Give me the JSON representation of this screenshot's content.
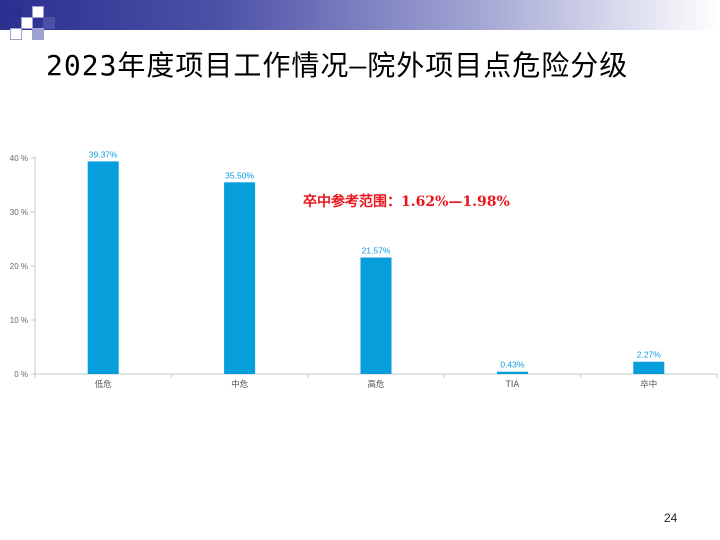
{
  "slide": {
    "title": "2023年度项目工作情况—院外项目点危险分级",
    "annotation": "卒中参考范围：1.62%—1.98%",
    "page_number": "24",
    "colors": {
      "bar": "#069fdc",
      "annotation": "#e8161c",
      "band_start": "#2b2f8f",
      "axis": "#c8c8c8"
    }
  },
  "chart_data": {
    "type": "bar",
    "categories": [
      "低危",
      "中危",
      "高危",
      "TIA",
      "卒中"
    ],
    "values": [
      39.37,
      35.5,
      21.57,
      0.43,
      2.27
    ],
    "value_labels": [
      "39.37%",
      "35.50%",
      "21.57%",
      "0.43%",
      "2.27%"
    ],
    "yticks": [
      "0 %",
      "10 %",
      "20 %",
      "30 %",
      "40 %"
    ],
    "ylim": [
      0,
      40
    ],
    "grid": false,
    "legend": "none",
    "title": "",
    "xlabel": "",
    "ylabel": ""
  }
}
